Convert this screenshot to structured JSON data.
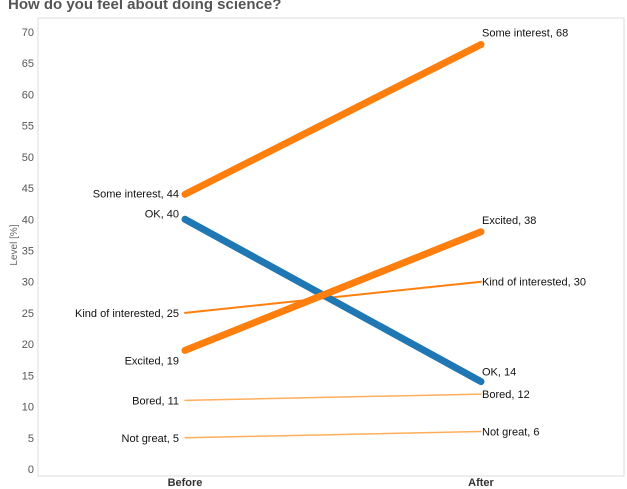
{
  "chart_data": {
    "type": "line",
    "title": "How do you feel about doing science?",
    "ylabel": "Level [%]",
    "xlabel": "",
    "categories": [
      "Before",
      "After"
    ],
    "ylim": [
      0,
      70
    ],
    "yticks": [
      0,
      5,
      10,
      15,
      20,
      25,
      30,
      35,
      40,
      45,
      50,
      55,
      60,
      65,
      70
    ],
    "grid": false,
    "legend": "none",
    "series": [
      {
        "name": "Some interest",
        "values": [
          44,
          68
        ],
        "color": "#ff7f0e",
        "weight": "thick",
        "labels": [
          "Some interest, 44",
          "Some interest, 68"
        ]
      },
      {
        "name": "OK",
        "values": [
          40,
          14
        ],
        "color": "#1f77b4",
        "weight": "thick",
        "labels": [
          "OK, 40",
          "OK, 14"
        ]
      },
      {
        "name": "Excited",
        "values": [
          19,
          38
        ],
        "color": "#ff7f0e",
        "weight": "thick",
        "labels": [
          "Excited, 19",
          "Excited, 38"
        ]
      },
      {
        "name": "Kind of interested",
        "values": [
          25,
          30
        ],
        "color": "#ff7f0e",
        "weight": "medium",
        "labels": [
          "Kind of interested, 25",
          "Kind of interested, 30"
        ]
      },
      {
        "name": "Bored",
        "values": [
          11,
          12
        ],
        "color": "#ffae5c",
        "weight": "thin",
        "labels": [
          "Bored, 11",
          "Bored, 12"
        ]
      },
      {
        "name": "Not great",
        "values": [
          5,
          6
        ],
        "color": "#ffae5c",
        "weight": "thin",
        "labels": [
          "Not great, 5",
          "Not great, 6"
        ]
      }
    ]
  }
}
